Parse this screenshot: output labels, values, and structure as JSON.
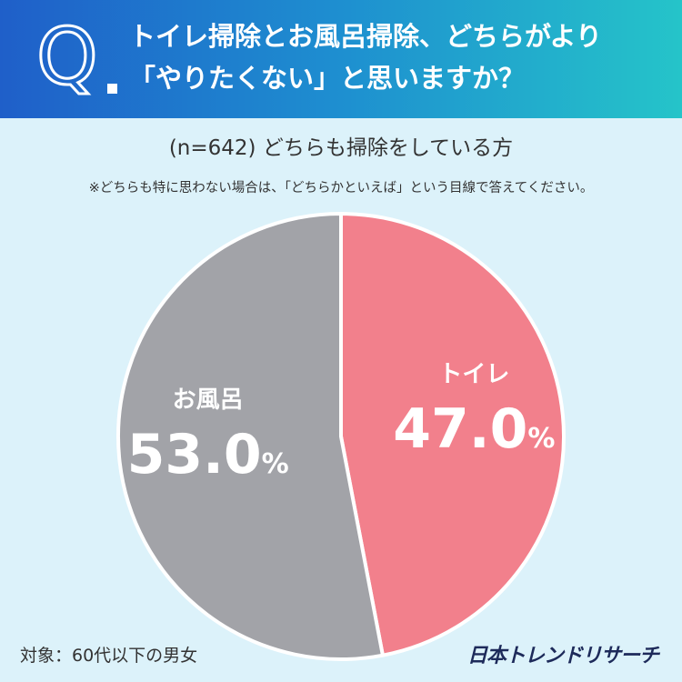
{
  "question": {
    "mark": "Q",
    "line1": "トイレ掃除とお風呂掃除、どちらがより",
    "line2": "「やりたくない」と思いますか？"
  },
  "subtitle": "(n=642) どちらも掃除をしている方",
  "note": "※どちらも特に思わない場合は、「どちらかといえば」という目線で答えてください。",
  "colors": {
    "toilet": "#f2808c",
    "bath": "#a2a3a8",
    "header_start": "#1f5fc9",
    "header_end": "#25c4c9"
  },
  "chart_data": {
    "type": "pie",
    "slices": [
      {
        "name": "トイレ",
        "value": 47.0,
        "label": "47.0",
        "unit": "%",
        "color": "#f2808c"
      },
      {
        "name": "お風呂",
        "value": 53.0,
        "label": "53.0",
        "unit": "%",
        "color": "#a2a3a8"
      }
    ]
  },
  "footer": {
    "target": "対象：60代以下の男女",
    "brand": "日本トレンドリサーチ"
  }
}
